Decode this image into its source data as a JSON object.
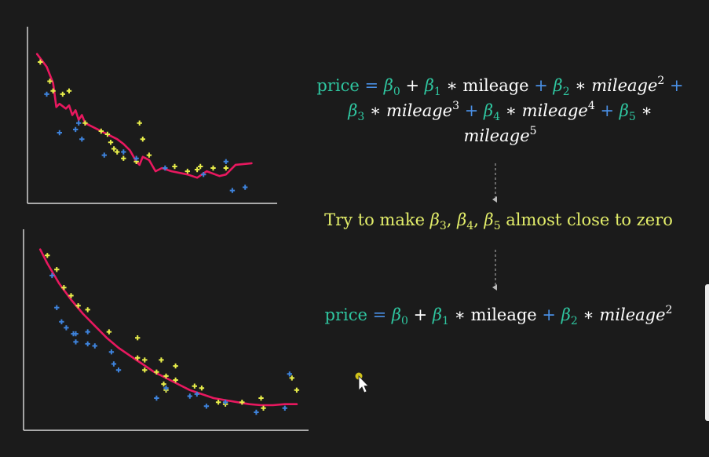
{
  "colors": {
    "background": "#1b1b1b",
    "axis": "#ffffff",
    "curve": "#e8185f",
    "train_points": "#e8ee4a",
    "test_points": "#3e83dc",
    "beta_green": "#2fc6a0",
    "operator_blue": "#4a90e6",
    "note_yellow": "#e3ee6a",
    "arrow": "#b8b8b8",
    "cursor_dot": "#cfc21a"
  },
  "chart_data": [
    {
      "type": "scatter",
      "id": "overfit",
      "train_points": [
        [
          4,
          88
        ],
        [
          7,
          76
        ],
        [
          8,
          70
        ],
        [
          11,
          68
        ],
        [
          13,
          70
        ],
        [
          18,
          50
        ],
        [
          23,
          45
        ],
        [
          25,
          43
        ],
        [
          26,
          38
        ],
        [
          27,
          34
        ],
        [
          28,
          32
        ],
        [
          30,
          28
        ],
        [
          34,
          26
        ],
        [
          35,
          50
        ],
        [
          36,
          40
        ],
        [
          38,
          30
        ],
        [
          46,
          23
        ],
        [
          50,
          20
        ],
        [
          53,
          21
        ],
        [
          54,
          23
        ],
        [
          58,
          22
        ],
        [
          62,
          22
        ]
      ],
      "test_points": [
        [
          6,
          68
        ],
        [
          10,
          44
        ],
        [
          15,
          46
        ],
        [
          16,
          50
        ],
        [
          17,
          40
        ],
        [
          24,
          30
        ],
        [
          30,
          32
        ],
        [
          34,
          28
        ],
        [
          43,
          22
        ],
        [
          55,
          18
        ],
        [
          62,
          26
        ],
        [
          64,
          8
        ],
        [
          68,
          10
        ]
      ],
      "curve": [
        [
          3,
          93
        ],
        [
          6,
          85
        ],
        [
          8,
          75
        ],
        [
          9,
          60
        ],
        [
          10,
          62
        ],
        [
          12,
          59
        ],
        [
          13,
          61
        ],
        [
          14,
          55
        ],
        [
          15,
          58
        ],
        [
          16,
          52
        ],
        [
          17,
          55
        ],
        [
          18,
          50
        ],
        [
          20,
          48
        ],
        [
          24,
          44
        ],
        [
          26,
          42
        ],
        [
          28,
          40
        ],
        [
          30,
          37
        ],
        [
          32,
          33
        ],
        [
          34,
          26
        ],
        [
          35,
          24
        ],
        [
          36,
          29
        ],
        [
          38,
          27
        ],
        [
          40,
          20
        ],
        [
          42,
          22
        ],
        [
          45,
          20
        ],
        [
          50,
          18
        ],
        [
          53,
          16
        ],
        [
          56,
          20
        ],
        [
          60,
          17
        ],
        [
          62,
          18
        ],
        [
          65,
          24
        ],
        [
          70,
          25
        ]
      ],
      "xlim": [
        0,
        78
      ],
      "ylim": [
        0,
        110
      ]
    },
    {
      "type": "scatter",
      "id": "regularized",
      "train_points": [
        [
          10,
          87
        ],
        [
          14,
          80
        ],
        [
          17,
          71
        ],
        [
          20,
          67
        ],
        [
          23,
          62
        ],
        [
          27,
          60
        ],
        [
          36,
          49
        ],
        [
          48,
          36
        ],
        [
          48,
          46
        ],
        [
          51,
          35
        ],
        [
          51,
          30
        ],
        [
          56,
          29
        ],
        [
          58,
          35
        ],
        [
          60,
          27
        ],
        [
          59,
          23
        ],
        [
          60,
          20
        ],
        [
          64,
          32
        ],
        [
          64,
          25
        ],
        [
          72,
          22
        ],
        [
          75,
          21
        ],
        [
          82,
          14
        ],
        [
          85,
          13
        ],
        [
          92,
          14
        ],
        [
          100,
          16
        ],
        [
          101,
          11
        ],
        [
          113,
          26
        ],
        [
          115,
          20
        ]
      ],
      "test_points": [
        [
          12,
          77
        ],
        [
          14,
          61
        ],
        [
          16,
          54
        ],
        [
          18,
          51
        ],
        [
          21,
          48
        ],
        [
          22,
          44
        ],
        [
          22,
          48
        ],
        [
          27,
          49
        ],
        [
          27,
          43
        ],
        [
          30,
          42
        ],
        [
          37,
          39
        ],
        [
          38,
          33
        ],
        [
          40,
          30
        ],
        [
          56,
          16
        ],
        [
          60,
          21
        ],
        [
          70,
          17
        ],
        [
          73,
          18
        ],
        [
          77,
          12
        ],
        [
          85,
          14
        ],
        [
          98,
          9
        ],
        [
          110,
          11
        ],
        [
          112,
          28
        ]
      ],
      "curve": [
        [
          7,
          90
        ],
        [
          10,
          83
        ],
        [
          15,
          73
        ],
        [
          20,
          65
        ],
        [
          25,
          58
        ],
        [
          30,
          52
        ],
        [
          35,
          46
        ],
        [
          40,
          41
        ],
        [
          45,
          37
        ],
        [
          50,
          33
        ],
        [
          55,
          29
        ],
        [
          60,
          26
        ],
        [
          65,
          23
        ],
        [
          70,
          20
        ],
        [
          75,
          18
        ],
        [
          80,
          16
        ],
        [
          85,
          15
        ],
        [
          90,
          14
        ],
        [
          95,
          13
        ],
        [
          100,
          12.5
        ],
        [
          105,
          12.5
        ],
        [
          110,
          13
        ],
        [
          115,
          13
        ]
      ],
      "xlim": [
        0,
        120
      ],
      "ylim": [
        0,
        100
      ]
    }
  ],
  "equation1": {
    "line1": {
      "price": "price",
      "equals": " = ",
      "b0": "β",
      "b0_sub": "0",
      "plus1": " + ",
      "b1": "β",
      "b1_sub": "1",
      "times1": " ∗ ",
      "mileage": "mileage",
      "plus2": " + ",
      "b2": "β",
      "b2_sub": "2",
      "times2": " ∗ ",
      "mileage_i": "mileage",
      "exp2": "2",
      "plus3": " +"
    },
    "line2": {
      "b3": "β",
      "b3_sub": "3",
      "times3": " ∗ ",
      "mileage": "mileage",
      "exp3": "3",
      "plus4": " + ",
      "b4": "β",
      "b4_sub": "4",
      "times4": " ∗ ",
      "mileage4": "mileage",
      "exp4": "4",
      "plus5": " + ",
      "b5": "β",
      "b5_sub": "5",
      "times5": " ∗"
    },
    "line3": {
      "mileage": "mileage",
      "exp5": "5"
    }
  },
  "note": {
    "pre": "Try to make ",
    "b3": "β",
    "b3_sub": "3",
    "comma1": ", ",
    "b4": "β",
    "b4_sub": "4",
    "comma2": ", ",
    "b5": "β",
    "b5_sub": "5",
    "post": " almost close to zero"
  },
  "equation2": {
    "price": "price",
    "equals": " = ",
    "b0": "β",
    "b0_sub": "0",
    "plus1": " + ",
    "b1": "β",
    "b1_sub": "1",
    "times1": " ∗ ",
    "mileage": "mileage",
    "plus2": " + ",
    "b2": "β",
    "b2_sub": "2",
    "times2": " ∗ ",
    "mileage_i": "mileage",
    "exp2": "2"
  },
  "icons": {
    "cursor": "mouse-pointer-icon",
    "arrow": "dashed-arrow-down-icon"
  }
}
